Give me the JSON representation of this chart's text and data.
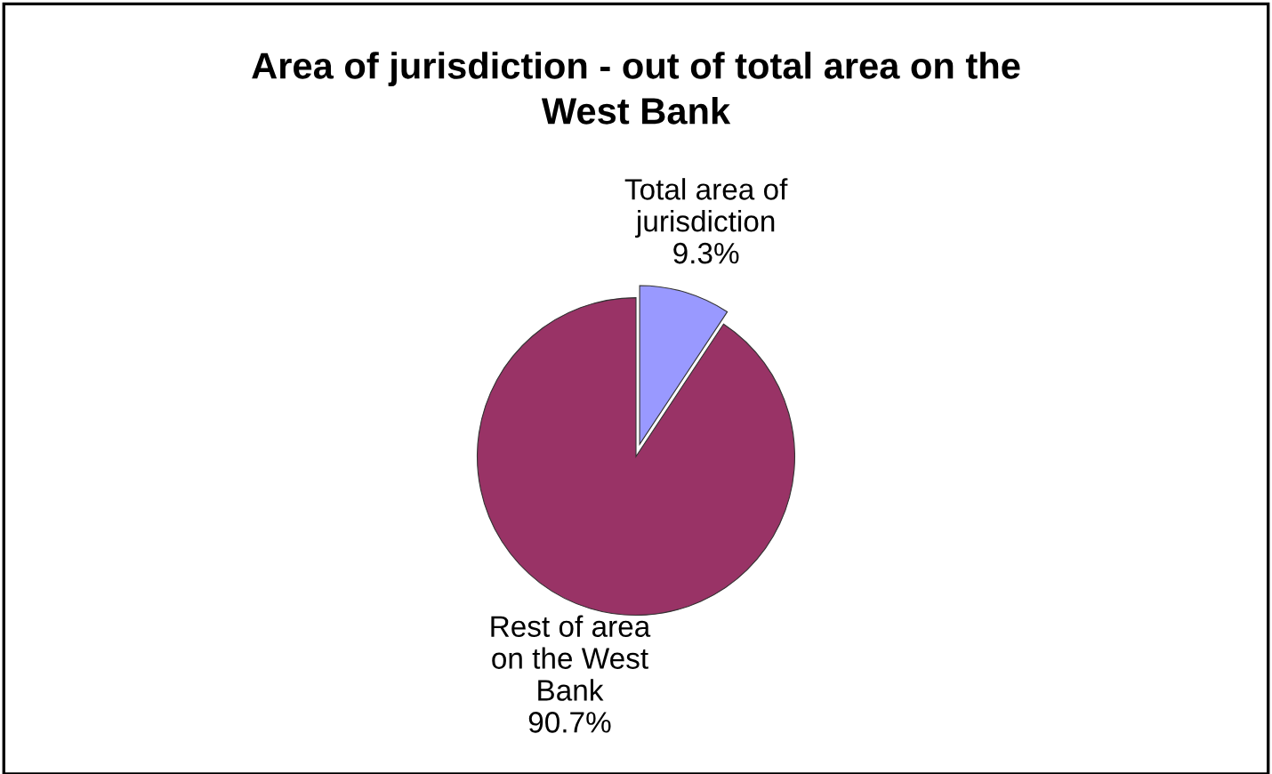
{
  "chart_data": {
    "type": "pie",
    "title": "Area of jurisdiction - out of total area on the\nWest Bank",
    "categories": [
      "Total area of\njurisdiction",
      "Rest of area\non the West\nBank"
    ],
    "values": [
      9.3,
      90.7
    ],
    "colors": [
      "#9999ff",
      "#993366"
    ],
    "value_labels": [
      "9.3%",
      "90.7%"
    ],
    "legend": false
  }
}
